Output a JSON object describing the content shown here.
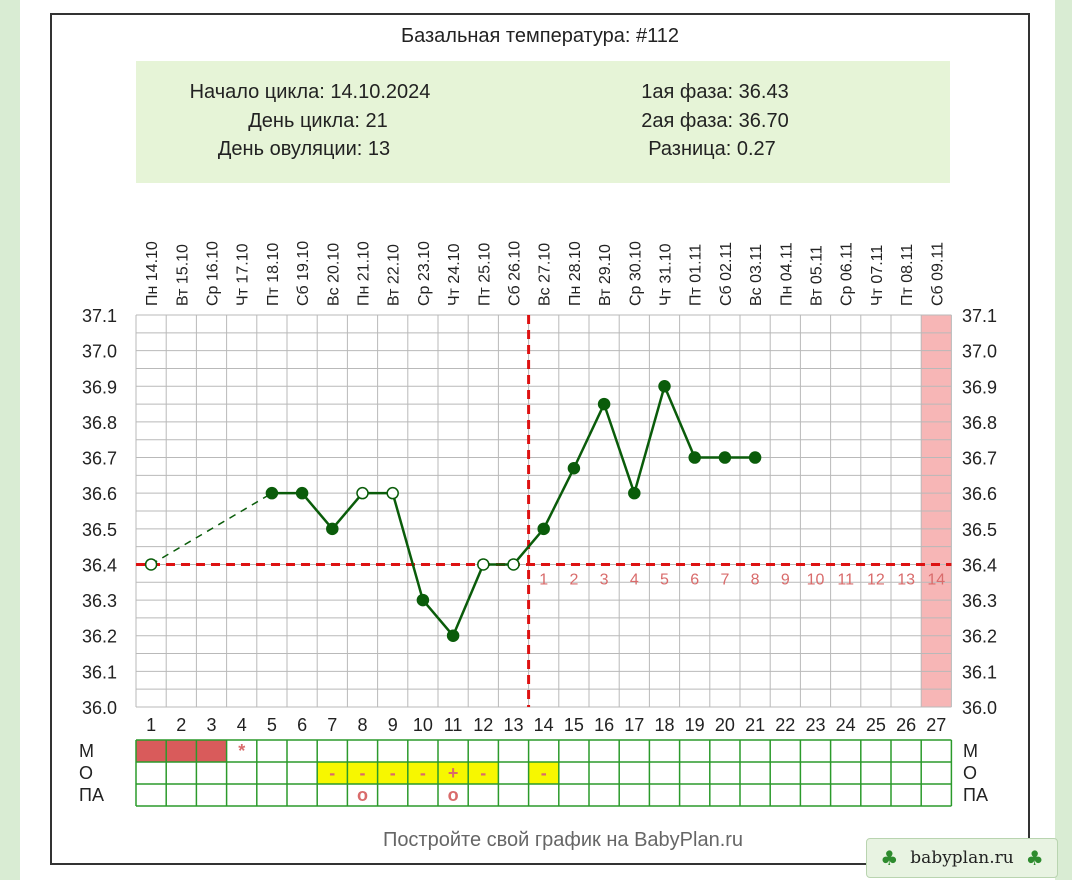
{
  "title": "Базальная температура: #112",
  "info_left": [
    "Начало цикла: 14.10.2024",
    "День цикла: 21",
    "День овуляции: 13"
  ],
  "info_right": [
    "1ая фаза: 36.43",
    "2ая фаза: 36.70",
    "Разница: 0.27"
  ],
  "footer": "Постройте свой график на BabyPlan.ru",
  "watermark": "babyplan.ru",
  "colors": {
    "line": "#0a5c0a",
    "coverline": "#dd1111",
    "info_bg": "#e6f4d7",
    "period_cell": "#d95b5b",
    "highlight_cell": "#f7f700",
    "grid": "#b9b9b9",
    "table_grid": "#2b9a2b",
    "predicted_period": "#f7b6b6",
    "phase_numbers": "#d96b6b"
  },
  "chart_data": {
    "type": "line",
    "title": "Базальная температура: #112",
    "x_day_numbers": [
      "1",
      "2",
      "3",
      "4",
      "5",
      "6",
      "7",
      "8",
      "9",
      "10",
      "11",
      "12",
      "13",
      "14",
      "15",
      "16",
      "17",
      "18",
      "19",
      "20",
      "21",
      "22",
      "23",
      "24",
      "25",
      "26",
      "27"
    ],
    "x_weekdays": [
      "Пн",
      "Вт",
      "Ср",
      "Чт",
      "Пт",
      "Сб",
      "Вс",
      "Пн",
      "Вт",
      "Ср",
      "Чт",
      "Пт",
      "Сб",
      "Вс",
      "Пн",
      "Вт",
      "Ср",
      "Чт",
      "Пт",
      "Сб",
      "Вс",
      "Пн",
      "Вт",
      "Ср",
      "Чт",
      "Пт",
      "Сб"
    ],
    "x_dates": [
      "14.10",
      "15.10",
      "16.10",
      "17.10",
      "18.10",
      "19.10",
      "20.10",
      "21.10",
      "22.10",
      "23.10",
      "24.10",
      "25.10",
      "26.10",
      "27.10",
      "28.10",
      "29.10",
      "30.10",
      "31.10",
      "01.11",
      "02.11",
      "03.11",
      "04.11",
      "05.11",
      "06.11",
      "07.11",
      "08.11",
      "09.11"
    ],
    "y_ticks": [
      "37.1",
      "37.0",
      "36.9",
      "36.8",
      "36.7",
      "36.6",
      "36.5",
      "36.4",
      "36.3",
      "36.2",
      "36.1",
      "36.0"
    ],
    "ylim": [
      36.0,
      37.1
    ],
    "series": [
      {
        "points": [
          {
            "day": 1,
            "temp": 36.4,
            "filled": false
          },
          {
            "day": 5,
            "temp": 36.6,
            "filled": true
          },
          {
            "day": 6,
            "temp": 36.6,
            "filled": true
          },
          {
            "day": 7,
            "temp": 36.5,
            "filled": true
          },
          {
            "day": 8,
            "temp": 36.6,
            "filled": false
          },
          {
            "day": 9,
            "temp": 36.6,
            "filled": false
          },
          {
            "day": 10,
            "temp": 36.3,
            "filled": true
          },
          {
            "day": 11,
            "temp": 36.2,
            "filled": true
          },
          {
            "day": 12,
            "temp": 36.4,
            "filled": false
          },
          {
            "day": 13,
            "temp": 36.4,
            "filled": false
          },
          {
            "day": 14,
            "temp": 36.5,
            "filled": true
          },
          {
            "day": 15,
            "temp": 36.67,
            "filled": true
          },
          {
            "day": 16,
            "temp": 36.85,
            "filled": true
          },
          {
            "day": 17,
            "temp": 36.6,
            "filled": true
          },
          {
            "day": 18,
            "temp": 36.9,
            "filled": true
          },
          {
            "day": 19,
            "temp": 36.7,
            "filled": true
          },
          {
            "day": 20,
            "temp": 36.7,
            "filled": true
          },
          {
            "day": 21,
            "temp": 36.7,
            "filled": true
          }
        ]
      }
    ],
    "coverline": 36.4,
    "ovulation_day": 13,
    "predicted_period_day": 27,
    "phase2_day_labels": [
      "1",
      "2",
      "3",
      "4",
      "5",
      "6",
      "7",
      "8",
      "9",
      "10",
      "11",
      "12",
      "13",
      "14"
    ],
    "grid": true
  },
  "table": {
    "row_labels": [
      "М",
      "О",
      "ПА"
    ],
    "M": {
      "period_days": [
        1,
        2,
        3
      ],
      "marks": [
        {
          "day": 4,
          "text": "*"
        }
      ]
    },
    "O": {
      "highlight_days": [
        7,
        8,
        9,
        10,
        11,
        12,
        14
      ],
      "marks": [
        {
          "day": 7,
          "text": "-"
        },
        {
          "day": 8,
          "text": "-"
        },
        {
          "day": 9,
          "text": "-"
        },
        {
          "day": 10,
          "text": "-"
        },
        {
          "day": 11,
          "text": "+"
        },
        {
          "day": 12,
          "text": "-"
        },
        {
          "day": 14,
          "text": "-"
        }
      ]
    },
    "PA": {
      "marks": [
        {
          "day": 8,
          "text": "o"
        },
        {
          "day": 11,
          "text": "o"
        }
      ]
    }
  }
}
